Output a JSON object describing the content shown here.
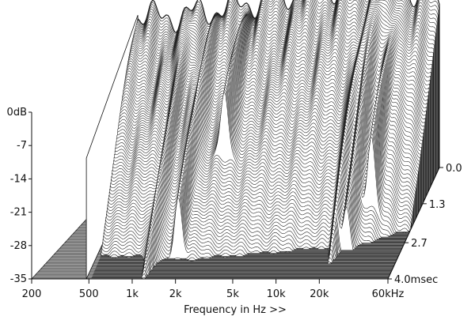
{
  "chart_data": {
    "type": "area",
    "subtype": "cumulative spectral decay (waterfall)",
    "title": "",
    "xlabel": "Frequency in Hz >>",
    "x_scale": "log",
    "x_ticks": [
      {
        "value": 200,
        "label": "200"
      },
      {
        "value": 500,
        "label": "500"
      },
      {
        "value": 1000,
        "label": "1k"
      },
      {
        "value": 2000,
        "label": "2k"
      },
      {
        "value": 5000,
        "label": "5k"
      },
      {
        "value": 10000,
        "label": "10k"
      },
      {
        "value": 20000,
        "label": "20k"
      },
      {
        "value": 60000,
        "label": "60kHz"
      }
    ],
    "xlim": [
      200,
      60000
    ],
    "y_ticks": [
      {
        "value": 0,
        "label": "0dB"
      },
      {
        "value": -7,
        "label": "-7"
      },
      {
        "value": -14,
        "label": "-14"
      },
      {
        "value": -21,
        "label": "-21"
      },
      {
        "value": -28,
        "label": "-28"
      },
      {
        "value": -35,
        "label": "-35"
      }
    ],
    "ylim": [
      -35,
      0
    ],
    "time_ticks": [
      {
        "value": 0.0,
        "label": "0.0"
      },
      {
        "value": 1.3,
        "label": "1.3"
      },
      {
        "value": 2.7,
        "label": "2.7"
      },
      {
        "value": 4.0,
        "label": "4.0msec"
      }
    ],
    "time_range_ms": [
      0,
      4.0
    ],
    "slice_count": 110,
    "front_response_db": {
      "freq_hz": [
        480,
        700,
        1000,
        2000,
        5000,
        10000,
        20000,
        30000,
        45000,
        60000
      ],
      "level_db": [
        -3,
        -3.5,
        -3,
        -1.5,
        1,
        2.5,
        3.5,
        4,
        1,
        -2
      ]
    },
    "resonance_peaks": [
      {
        "freq_hz": 1200,
        "decay_ms": 4.0
      },
      {
        "freq_hz": 1800,
        "decay_ms": 3.3
      },
      {
        "freq_hz": 3000,
        "decay_ms": 2.2
      },
      {
        "freq_hz": 21000,
        "decay_ms": 3.5
      },
      {
        "freq_hz": 25000,
        "decay_ms": 3.0
      },
      {
        "freq_hz": 33000,
        "decay_ms": 2.4
      }
    ],
    "grid": false,
    "colors": {
      "line": "#1a1a1a",
      "floor": "#7d7d7d",
      "floor_lines": "#b4b4b4",
      "fill": "#ffffff"
    }
  }
}
